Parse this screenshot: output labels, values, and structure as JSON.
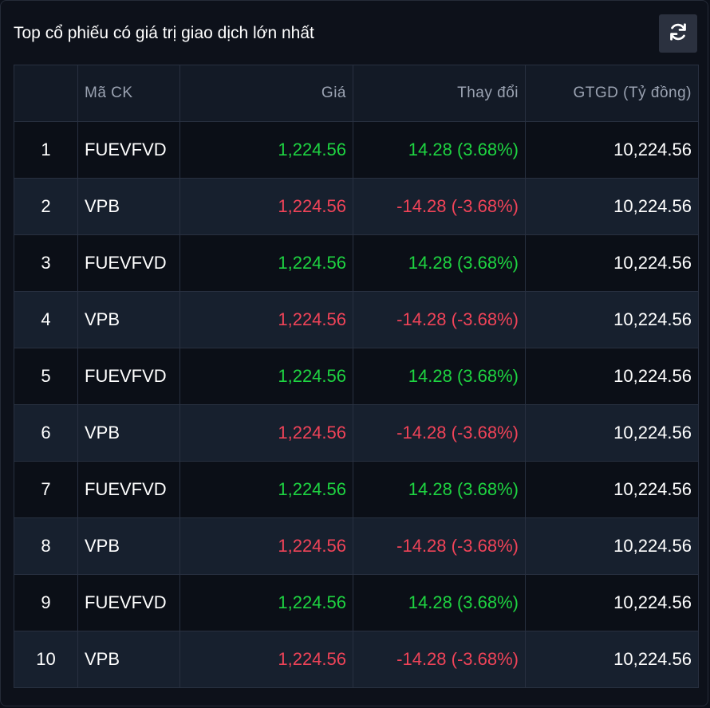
{
  "panel": {
    "title": "Top cổ phiếu có giá trị giao dịch lớn nhất",
    "refresh_icon": "refresh-icon"
  },
  "table": {
    "headers": {
      "index": "",
      "code": "Mã CK",
      "price": "Giá",
      "change": "Thay đổi",
      "value": "GTGD (Tỷ đồng)"
    },
    "colors": {
      "up": "#1ed441",
      "down": "#f04358"
    },
    "rows": [
      {
        "index": "1",
        "code": "FUEVFVD",
        "price": "1,224.56",
        "change": "14.28 (3.68%)",
        "value": "10,224.56",
        "trend": "up"
      },
      {
        "index": "2",
        "code": "VPB",
        "price": "1,224.56",
        "change": "-14.28 (-3.68%)",
        "value": "10,224.56",
        "trend": "down"
      },
      {
        "index": "3",
        "code": "FUEVFVD",
        "price": "1,224.56",
        "change": "14.28 (3.68%)",
        "value": "10,224.56",
        "trend": "up"
      },
      {
        "index": "4",
        "code": "VPB",
        "price": "1,224.56",
        "change": "-14.28 (-3.68%)",
        "value": "10,224.56",
        "trend": "down"
      },
      {
        "index": "5",
        "code": "FUEVFVD",
        "price": "1,224.56",
        "change": "14.28 (3.68%)",
        "value": "10,224.56",
        "trend": "up"
      },
      {
        "index": "6",
        "code": "VPB",
        "price": "1,224.56",
        "change": "-14.28 (-3.68%)",
        "value": "10,224.56",
        "trend": "down"
      },
      {
        "index": "7",
        "code": "FUEVFVD",
        "price": "1,224.56",
        "change": "14.28 (3.68%)",
        "value": "10,224.56",
        "trend": "up"
      },
      {
        "index": "8",
        "code": "VPB",
        "price": "1,224.56",
        "change": "-14.28 (-3.68%)",
        "value": "10,224.56",
        "trend": "down"
      },
      {
        "index": "9",
        "code": "FUEVFVD",
        "price": "1,224.56",
        "change": "14.28 (3.68%)",
        "value": "10,224.56",
        "trend": "up"
      },
      {
        "index": "10",
        "code": "VPB",
        "price": "1,224.56",
        "change": "-14.28 (-3.68%)",
        "value": "10,224.56",
        "trend": "down"
      }
    ]
  }
}
